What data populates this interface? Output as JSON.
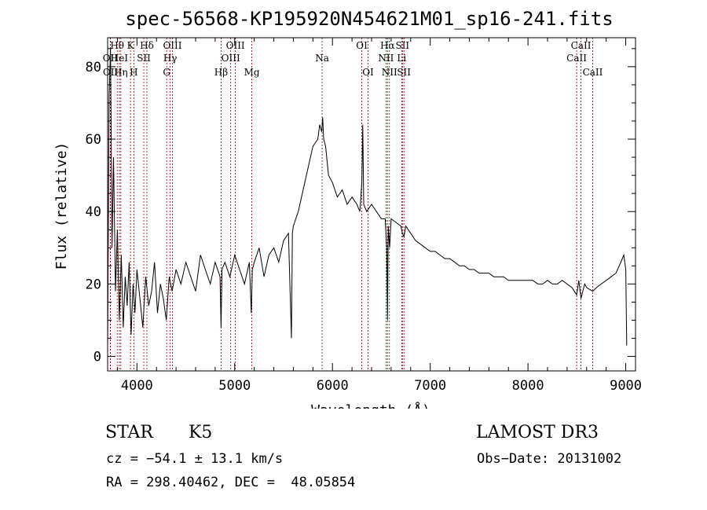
{
  "chart_data": {
    "type": "line",
    "title": "spec-56568-KP195920N454621M01_sp16-241.fits",
    "xlabel": "Wavelength (Å)",
    "ylabel": "Flux (relative)",
    "xlim": [
      3700,
      9100
    ],
    "ylim": [
      -4,
      88
    ],
    "x_ticks": [
      4000,
      5000,
      6000,
      7000,
      8000,
      9000
    ],
    "x_tick_labels": [
      "4000",
      "5000",
      "6000",
      "7000",
      "8000",
      "9000"
    ],
    "y_ticks": [
      0,
      20,
      40,
      60,
      80
    ],
    "y_tick_labels": [
      "0",
      "20",
      "40",
      "60",
      "80"
    ],
    "line_color": "#000000",
    "marker_color": "#8b0000",
    "series": [
      {
        "name": "flux",
        "x": [
          3700,
          3715,
          3730,
          3745,
          3760,
          3780,
          3800,
          3820,
          3840,
          3860,
          3880,
          3900,
          3920,
          3940,
          3960,
          3980,
          4000,
          4030,
          4060,
          4090,
          4120,
          4150,
          4180,
          4210,
          4240,
          4270,
          4300,
          4330,
          4360,
          4400,
          4450,
          4500,
          4550,
          4600,
          4650,
          4700,
          4750,
          4800,
          4850,
          4860,
          4870,
          4900,
          4950,
          5000,
          5050,
          5100,
          5150,
          5170,
          5180,
          5200,
          5250,
          5300,
          5350,
          5400,
          5450,
          5500,
          5550,
          5580,
          5590,
          5600,
          5650,
          5700,
          5750,
          5800,
          5850,
          5870,
          5890,
          5900,
          5910,
          5930,
          5960,
          6000,
          6050,
          6100,
          6150,
          6200,
          6250,
          6280,
          6300,
          6310,
          6320,
          6350,
          6400,
          6450,
          6500,
          6540,
          6555,
          6563,
          6570,
          6585,
          6600,
          6650,
          6700,
          6716,
          6731,
          6750,
          6800,
          6850,
          6900,
          6950,
          7000,
          7050,
          7100,
          7150,
          7200,
          7250,
          7300,
          7350,
          7400,
          7450,
          7500,
          7550,
          7600,
          7650,
          7700,
          7750,
          7800,
          7850,
          7900,
          7950,
          8000,
          8050,
          8100,
          8150,
          8200,
          8250,
          8300,
          8350,
          8400,
          8450,
          8498,
          8520,
          8542,
          8580,
          8600,
          8662,
          8700,
          8750,
          8800,
          8850,
          8900,
          8950,
          8980,
          9000,
          9010
        ],
        "y": [
          2,
          72,
          85,
          30,
          55,
          18,
          35,
          10,
          28,
          8,
          22,
          14,
          26,
          6,
          20,
          12,
          24,
          16,
          8,
          22,
          14,
          18,
          26,
          12,
          20,
          16,
          10,
          22,
          18,
          24,
          20,
          26,
          22,
          18,
          28,
          24,
          20,
          26,
          22,
          8,
          24,
          26,
          22,
          28,
          24,
          20,
          26,
          12,
          24,
          26,
          30,
          22,
          28,
          30,
          26,
          32,
          34,
          5,
          34,
          36,
          40,
          46,
          52,
          58,
          60,
          64,
          62,
          66,
          60,
          58,
          50,
          48,
          44,
          46,
          42,
          44,
          42,
          40,
          48,
          64,
          42,
          40,
          42,
          40,
          38,
          38,
          30,
          10,
          36,
          30,
          38,
          37,
          36,
          34,
          33,
          36,
          34,
          32,
          31,
          30,
          29,
          29,
          28,
          27,
          27,
          26,
          25,
          25,
          24,
          24,
          23,
          23,
          23,
          22,
          22,
          22,
          21,
          21,
          21,
          21,
          21,
          21,
          20,
          20,
          21,
          20,
          20,
          21,
          20,
          19,
          17,
          21,
          16,
          20,
          19,
          18,
          19,
          20,
          21,
          22,
          23,
          26,
          28,
          24,
          3
        ]
      }
    ],
    "line_markers": [
      {
        "label": "OII",
        "wavelength": 3727,
        "row": 2
      },
      {
        "label": "OII",
        "wavelength": 3729,
        "row": 3
      },
      {
        "label": "Hθ",
        "wavelength": 3798,
        "row": 1
      },
      {
        "label": "HeI",
        "wavelength": 3820,
        "row": 2
      },
      {
        "label": "Hη",
        "wavelength": 3835,
        "row": 3
      },
      {
        "label": "K",
        "wavelength": 3934,
        "row": 1
      },
      {
        "label": "H",
        "wavelength": 3968,
        "row": 3
      },
      {
        "label": "SII",
        "wavelength": 4070,
        "row": 2
      },
      {
        "label": "Hδ",
        "wavelength": 4102,
        "row": 1
      },
      {
        "label": "G",
        "wavelength": 4304,
        "row": 3
      },
      {
        "label": "Hγ",
        "wavelength": 4340,
        "row": 2
      },
      {
        "label": "OIII",
        "wavelength": 4363,
        "row": 1
      },
      {
        "label": "Hβ",
        "wavelength": 4861,
        "row": 3
      },
      {
        "label": "OIII",
        "wavelength": 4959,
        "row": 2
      },
      {
        "label": "OIII",
        "wavelength": 5007,
        "row": 1
      },
      {
        "label": "Mg",
        "wavelength": 5175,
        "row": 3
      },
      {
        "label": "Na",
        "wavelength": 5894,
        "row": 2
      },
      {
        "label": "OI",
        "wavelength": 6300,
        "row": 1
      },
      {
        "label": "OI",
        "wavelength": 6364,
        "row": 3
      },
      {
        "label": "NII",
        "wavelength": 6548,
        "row": 2
      },
      {
        "label": "Hα",
        "wavelength": 6563,
        "row": 1
      },
      {
        "label": "NII",
        "wavelength": 6583,
        "row": 3
      },
      {
        "label": "Li",
        "wavelength": 6708,
        "row": 2
      },
      {
        "label": "SII",
        "wavelength": 6716,
        "row": 1
      },
      {
        "label": "SII",
        "wavelength": 6731,
        "row": 3
      },
      {
        "label": "CaII",
        "wavelength": 8498,
        "row": 2
      },
      {
        "label": "CaII",
        "wavelength": 8542,
        "row": 1
      },
      {
        "label": "CaII",
        "wavelength": 8662,
        "row": 3
      }
    ]
  },
  "info": {
    "class_label": "STAR",
    "subclass_label": "K5",
    "survey_label": "LAMOST DR3",
    "redshift_text": "cz = −54.1 ± 13.1 km/s",
    "obs_date_text": "Obs−Date: 20131002",
    "coords_text": "RA = 298.40462, DEC =  48.05854"
  }
}
